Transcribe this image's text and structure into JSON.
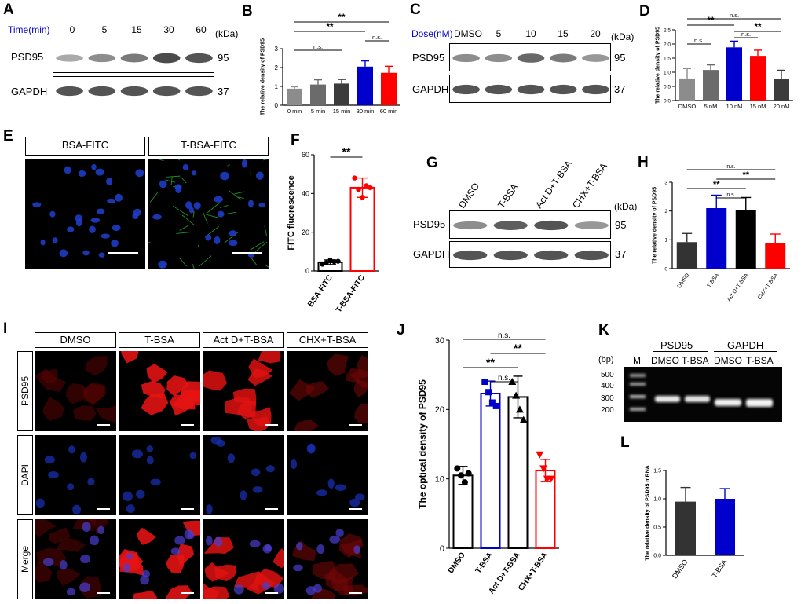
{
  "colors": {
    "blue": "#0000cc",
    "red": "#ff0000",
    "black": "#000000",
    "gray_light": "#8c8c8c",
    "gray_mid": "#6b6b6b",
    "gray_dark": "#3c3c3c",
    "dark_bar": "#333333"
  },
  "panels": {
    "A": {
      "label": "A",
      "row_header": "Time(min)",
      "lanes": [
        "0",
        "5",
        "15",
        "30",
        "60"
      ],
      "kda_label": "(kDa)",
      "rows": [
        {
          "name": "PSD95",
          "mw": "95",
          "intensity": [
            0.45,
            0.6,
            0.7,
            0.95,
            0.9
          ]
        },
        {
          "name": "GAPDH",
          "mw": "37",
          "intensity": [
            0.9,
            0.9,
            0.9,
            0.9,
            0.9
          ]
        }
      ]
    },
    "B": {
      "label": "B"
    },
    "C": {
      "label": "C",
      "row_header": "Dose(nM)",
      "lanes": [
        "DMSO",
        "5",
        "10",
        "15",
        "20"
      ],
      "kda_label": "(kDa)",
      "rows": [
        {
          "name": "PSD95",
          "mw": "95",
          "intensity": [
            0.6,
            0.6,
            0.8,
            0.7,
            0.55
          ]
        },
        {
          "name": "GAPDH",
          "mw": "37",
          "intensity": [
            0.9,
            0.9,
            0.9,
            0.9,
            0.9
          ]
        }
      ]
    },
    "D": {
      "label": "D"
    },
    "E": {
      "label": "E",
      "headers": [
        "BSA-FITC",
        "T-BSA-FITC"
      ]
    },
    "F": {
      "label": "F"
    },
    "G": {
      "label": "G",
      "lanes": [
        "DMSO",
        "T-BSA",
        "Act D+T-BSA",
        "CHX+T-BSA"
      ],
      "kda_label": "(kDa)",
      "rows": [
        {
          "name": "PSD95",
          "mw": "95",
          "intensity": [
            0.6,
            0.85,
            0.9,
            0.55
          ]
        },
        {
          "name": "GAPDH",
          "mw": "37",
          "intensity": [
            0.9,
            0.9,
            0.9,
            0.9
          ]
        }
      ]
    },
    "H": {
      "label": "H"
    },
    "I": {
      "label": "I",
      "col_headers": [
        "DMSO",
        "T-BSA",
        "Act D+T-BSA",
        "CHX+T-BSA"
      ],
      "row_headers": [
        "PSD95",
        "DAPI",
        "Merge"
      ]
    },
    "J": {
      "label": "J"
    },
    "K": {
      "label": "K",
      "group_headers": [
        "PSD95",
        "GAPDH"
      ],
      "lane_headers": [
        "M",
        "DMSO",
        "T-BSA",
        "DMSO",
        "T-BSA"
      ],
      "bp_label": "(bp)",
      "ladder": [
        "500",
        "400",
        "300",
        "200"
      ]
    },
    "L": {
      "label": "L"
    }
  },
  "chart_data": [
    {
      "id": "B",
      "type": "bar",
      "ylabel": "The relative density of PSD95",
      "categories": [
        "0 min",
        "5 min",
        "15 min",
        "30 min",
        "60 min"
      ],
      "values": [
        0.88,
        1.1,
        1.15,
        2.05,
        1.72
      ],
      "errors": [
        0.1,
        0.25,
        0.22,
        0.3,
        0.35
      ],
      "colors": [
        "#8c8c8c",
        "#6b6b6b",
        "#3c3c3c",
        "#0000cc",
        "#ff0000"
      ],
      "ylim": [
        0,
        3
      ],
      "yticks": [
        "0",
        "1",
        "2",
        "3"
      ],
      "significance": [
        {
          "from": 0,
          "to": 4,
          "label": "**"
        },
        {
          "from": 0,
          "to": 3,
          "label": "**"
        },
        {
          "from": 3,
          "to": 4,
          "label": "n.s."
        },
        {
          "from": 0,
          "to": 2,
          "label": "n.s."
        }
      ]
    },
    {
      "id": "D",
      "type": "bar",
      "ylabel": "The relative density of PSD95",
      "categories": [
        "DMSO",
        "5 nM",
        "10 nM",
        "15 nM",
        "20 nM"
      ],
      "values": [
        0.78,
        1.08,
        1.88,
        1.58,
        0.75
      ],
      "errors": [
        0.35,
        0.18,
        0.22,
        0.2,
        0.32
      ],
      "colors": [
        "#8c8c8c",
        "#6b6b6b",
        "#0000cc",
        "#ff0000",
        "#3c3c3c"
      ],
      "ylim": [
        0,
        2.5
      ],
      "yticks": [
        "0.0",
        "0.5",
        "1.0",
        "1.5",
        "2.0",
        "2.5"
      ],
      "significance": [
        {
          "from": 0,
          "to": 4,
          "label": "n.s."
        },
        {
          "from": 0,
          "to": 2,
          "label": "**"
        },
        {
          "from": 2,
          "to": 4,
          "label": "**"
        },
        {
          "from": 2,
          "to": 3,
          "label": "n.s."
        },
        {
          "from": 0,
          "to": 1,
          "label": "n.s."
        }
      ]
    },
    {
      "id": "F",
      "type": "bar",
      "ylabel": "FITC fluorescence",
      "categories": [
        "BSA-FITC",
        "T-BSA-FITC"
      ],
      "values": [
        4.5,
        43
      ],
      "errors": [
        1.2,
        5
      ],
      "colors": [
        "#000000",
        "#ff0000"
      ],
      "points": [
        [
          3.5,
          4.2,
          5.5,
          4.8,
          5.0
        ],
        [
          48,
          42,
          38,
          44,
          43
        ]
      ],
      "ylim": [
        0,
        60
      ],
      "yticks": [
        "0",
        "20",
        "40",
        "60"
      ],
      "significance": [
        {
          "from": 0,
          "to": 1,
          "label": "**"
        }
      ]
    },
    {
      "id": "H",
      "type": "bar",
      "ylabel": "The relative density of PSD95",
      "categories": [
        "DMSO",
        "T-BSA",
        "Act D+T-BSA",
        "CHX+T-BSA"
      ],
      "values": [
        0.92,
        2.1,
        2.02,
        0.9
      ],
      "errors": [
        0.3,
        0.45,
        0.45,
        0.3
      ],
      "colors": [
        "#333333",
        "#0000cc",
        "#000000",
        "#ff0000"
      ],
      "ylim": [
        0,
        3
      ],
      "yticks": [
        "0",
        "1",
        "2",
        "3"
      ],
      "significance": [
        {
          "from": 0,
          "to": 3,
          "label": "n.s."
        },
        {
          "from": 1,
          "to": 3,
          "label": "**"
        },
        {
          "from": 0,
          "to": 2,
          "label": "**"
        },
        {
          "from": 1,
          "to": 2,
          "label": "n.s."
        }
      ]
    },
    {
      "id": "J",
      "type": "bar",
      "ylabel": "The optical density of PSD95",
      "categories": [
        "DMSO",
        "T-BSA",
        "Act D+T-BSA",
        "CHX+T-BSA"
      ],
      "values": [
        10.5,
        22.3,
        21.8,
        11.2
      ],
      "errors": [
        1.3,
        1.8,
        3,
        1.6
      ],
      "colors": [
        "#000000",
        "#0000cc",
        "#000000",
        "#ff0000"
      ],
      "markers": [
        "circle",
        "square",
        "triangle",
        "triangle-down"
      ],
      "points": [
        [
          11.5,
          10.5,
          9.5,
          10.8
        ],
        [
          24,
          22.5,
          21,
          20.5
        ],
        [
          24,
          22,
          20,
          18.5
        ],
        [
          13.5,
          11.5,
          10,
          10
        ]
      ],
      "ylim": [
        0,
        30
      ],
      "yticks": [
        "0",
        "10",
        "20",
        "30"
      ],
      "significance": [
        {
          "from": 0,
          "to": 3,
          "label": "n.s."
        },
        {
          "from": 1,
          "to": 3,
          "label": "**"
        },
        {
          "from": 0,
          "to": 2,
          "label": "**"
        },
        {
          "from": 1,
          "to": 2,
          "label": "n.s."
        }
      ]
    },
    {
      "id": "L",
      "type": "bar",
      "ylabel": "The relative density of PSD95 mRNA",
      "categories": [
        "DMSO",
        "T-BSA"
      ],
      "values": [
        0.95,
        1.0
      ],
      "errors": [
        0.25,
        0.18
      ],
      "colors": [
        "#333333",
        "#0000cc"
      ],
      "ylim": [
        0,
        1.5
      ],
      "yticks": [
        "0.0",
        "0.5",
        "1.0",
        "1.5"
      ],
      "significance": []
    }
  ]
}
